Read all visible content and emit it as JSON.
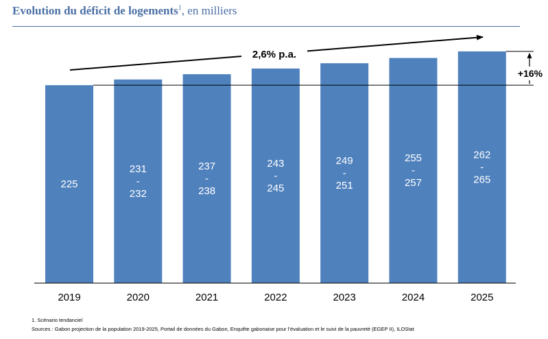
{
  "title": {
    "main": "Evolution du déficit de logements",
    "sup": "1",
    "suffix": ", en milliers"
  },
  "chart_data": {
    "type": "bar",
    "categories": [
      "2019",
      "2020",
      "2021",
      "2022",
      "2023",
      "2024",
      "2025"
    ],
    "values": [
      225,
      231.5,
      237.5,
      244,
      250,
      256,
      263.5
    ],
    "labels": [
      [
        "225"
      ],
      [
        "231",
        "-",
        "232"
      ],
      [
        "237",
        "-",
        "238"
      ],
      [
        "243",
        "-",
        "245"
      ],
      [
        "249",
        "-",
        "251"
      ],
      [
        "255",
        "-",
        "257"
      ],
      [
        "262",
        "-",
        "265"
      ]
    ],
    "bar_color": "#4f81bd",
    "growth_annotation": "2,6% p.a.",
    "change_annotation": "+16%",
    "ylim": [
      0,
      272
    ]
  },
  "footnotes": {
    "note1": "1.     Scénario tendanciel",
    "sources": "Sources : Gabon projection de la population 2019-2025, Portail de données du Gabon,  Enquête gabonaise pour l’évaluation et le suivi de la pauvreté (EGEP II), ILOStat"
  }
}
